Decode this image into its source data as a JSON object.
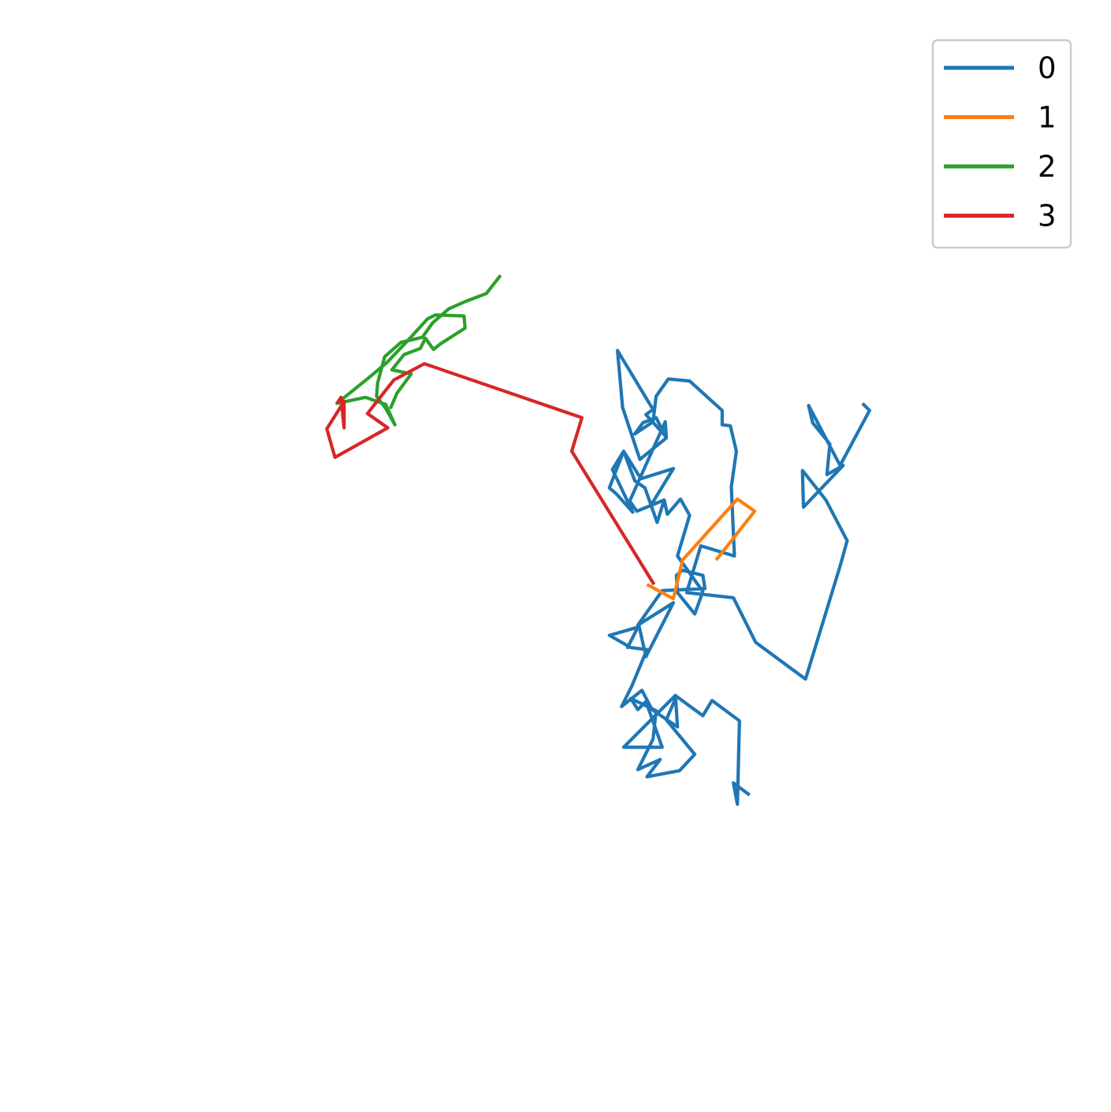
{
  "chart_data": {
    "type": "line",
    "title": "",
    "xlabel": "",
    "ylabel": "",
    "axes_visible": false,
    "grid": false,
    "legend_position": "top-right",
    "xlim": [
      0,
      100
    ],
    "ylim": [
      0,
      100
    ],
    "series": [
      {
        "name": "0",
        "color": "#1f77b4",
        "points": [
          [
            69.1,
            26.5
          ],
          [
            67.5,
            27.7
          ],
          [
            67.9,
            25.6
          ],
          [
            68.1,
            33.8
          ],
          [
            65.4,
            35.8
          ],
          [
            64.5,
            34.3
          ],
          [
            61.9,
            36.2
          ],
          [
            60.9,
            33.9
          ],
          [
            63.7,
            30.5
          ],
          [
            62.2,
            28.9
          ],
          [
            59.0,
            28.3
          ],
          [
            60.3,
            30.0
          ],
          [
            58.1,
            29.0
          ],
          [
            59.6,
            32.0
          ],
          [
            59.9,
            34.8
          ],
          [
            57.4,
            36.0
          ],
          [
            58.1,
            34.9
          ],
          [
            58.9,
            35.7
          ],
          [
            60.5,
            31.2
          ],
          [
            56.7,
            31.2
          ],
          [
            61.8,
            36.3
          ],
          [
            62.0,
            33.2
          ],
          [
            59.5,
            34.9
          ],
          [
            58.5,
            36.8
          ],
          [
            56.5,
            35.2
          ],
          [
            57.5,
            37.2
          ],
          [
            59.0,
            40.8
          ],
          [
            57.4,
            41.0
          ],
          [
            55.3,
            42.2
          ],
          [
            58.1,
            43.0
          ],
          [
            57.1,
            41.0
          ],
          [
            58.2,
            43.2
          ],
          [
            58.9,
            40.1
          ],
          [
            61.6,
            45.4
          ],
          [
            58.1,
            43.2
          ],
          [
            60.5,
            46.6
          ],
          [
            64.7,
            46.8
          ],
          [
            64.5,
            48.1
          ],
          [
            62.5,
            48.6
          ],
          [
            61.9,
            48.1
          ],
          [
            62.0,
            46.4
          ],
          [
            63.7,
            44.3
          ],
          [
            64.5,
            46.5
          ],
          [
            62.0,
            50.0
          ],
          [
            63.2,
            54.0
          ],
          [
            62.3,
            55.6
          ],
          [
            61.0,
            54.1
          ],
          [
            60.7,
            55.5
          ],
          [
            59.4,
            55.0
          ],
          [
            61.6,
            58.6
          ],
          [
            58.4,
            57.6
          ],
          [
            56.7,
            60.3
          ],
          [
            55.6,
            58.5
          ],
          [
            57.6,
            54.3
          ],
          [
            56.0,
            56.1
          ],
          [
            55.3,
            56.7
          ],
          [
            56.7,
            60.3
          ],
          [
            57.8,
            57.4
          ],
          [
            58.8,
            56.7
          ],
          [
            60.0,
            53.3
          ],
          [
            60.7,
            55.5
          ],
          [
            58.0,
            54.4
          ],
          [
            57.3,
            55.4
          ],
          [
            60.8,
            63.2
          ],
          [
            60.9,
            61.7
          ],
          [
            58.9,
            63.9
          ],
          [
            59.6,
            64.4
          ],
          [
            56.1,
            70.2
          ],
          [
            56.6,
            64.6
          ],
          [
            58.3,
            59.5
          ],
          [
            60.9,
            61.6
          ],
          [
            59.9,
            63.6
          ],
          [
            58.6,
            63.1
          ],
          [
            57.8,
            62.0
          ],
          [
            59.6,
            63.2
          ],
          [
            59.9,
            65.7
          ],
          [
            61.1,
            67.4
          ],
          [
            63.2,
            67.2
          ],
          [
            66.4,
            64.3
          ],
          [
            66.4,
            62.9
          ],
          [
            67.2,
            62.8
          ],
          [
            67.8,
            60.3
          ],
          [
            67.3,
            56.8
          ],
          [
            67.6,
            50.0
          ],
          [
            64.3,
            51.0
          ],
          [
            62.9,
            46.4
          ],
          [
            67.5,
            45.9
          ],
          [
            69.7,
            41.5
          ],
          [
            74.6,
            37.9
          ],
          [
            78.0,
            49.0
          ],
          [
            78.7,
            51.5
          ],
          [
            76.6,
            55.5
          ],
          [
            74.3,
            58.4
          ],
          [
            74.4,
            54.8
          ],
          [
            78.3,
            58.9
          ],
          [
            76.7,
            58.0
          ],
          [
            77.0,
            61.0
          ],
          [
            75.3,
            63.1
          ],
          [
            74.9,
            64.8
          ],
          [
            78.0,
            58.9
          ],
          [
            80.9,
            64.3
          ],
          [
            80.8,
            64.4
          ],
          [
            80.2,
            65.0
          ]
        ]
      },
      {
        "name": "1",
        "color": "#ff7f0e",
        "points": [
          [
            59.0,
            47.2
          ],
          [
            61.6,
            45.8
          ],
          [
            62.5,
            49.6
          ],
          [
            67.9,
            55.6
          ],
          [
            69.6,
            54.4
          ],
          [
            65.8,
            49.6
          ]
        ]
      },
      {
        "name": "2",
        "color": "#2ca02c",
        "points": [
          [
            44.6,
            77.6
          ],
          [
            43.2,
            75.8
          ],
          [
            41.1,
            75.0
          ],
          [
            39.5,
            74.3
          ],
          [
            37.9,
            72.9
          ],
          [
            36.9,
            71.5
          ],
          [
            34.8,
            71.0
          ],
          [
            33.2,
            69.6
          ],
          [
            32.5,
            67.0
          ],
          [
            32.4,
            65.7
          ],
          [
            33.3,
            64.5
          ],
          [
            34.2,
            62.9
          ],
          [
            33.3,
            64.9
          ],
          [
            31.3,
            65.6
          ],
          [
            28.5,
            65.0
          ],
          [
            31.6,
            67.5
          ],
          [
            33.4,
            69.0
          ],
          [
            35.4,
            71.1
          ],
          [
            37.4,
            73.3
          ],
          [
            38.2,
            73.7
          ],
          [
            41.0,
            73.6
          ],
          [
            41.1,
            72.4
          ],
          [
            38.6,
            70.8
          ],
          [
            38.0,
            70.3
          ],
          [
            37.2,
            71.4
          ],
          [
            36.7,
            70.4
          ],
          [
            35.1,
            69.8
          ],
          [
            33.9,
            68.3
          ],
          [
            35.8,
            67.9
          ],
          [
            34.4,
            66.0
          ],
          [
            33.8,
            64.6
          ],
          [
            34.4,
            66.0
          ]
        ]
      },
      {
        "name": "3",
        "color": "#d62728",
        "points": [
          [
            59.7,
            47.2
          ],
          [
            51.6,
            60.3
          ],
          [
            52.6,
            63.6
          ],
          [
            37.1,
            68.9
          ],
          [
            34.1,
            67.3
          ],
          [
            31.5,
            64.0
          ],
          [
            33.5,
            62.6
          ],
          [
            28.3,
            59.7
          ],
          [
            27.5,
            62.5
          ],
          [
            29.2,
            65.2
          ],
          [
            29.2,
            62.6
          ],
          [
            28.9,
            65.6
          ],
          [
            28.5,
            65.0
          ]
        ]
      }
    ]
  }
}
